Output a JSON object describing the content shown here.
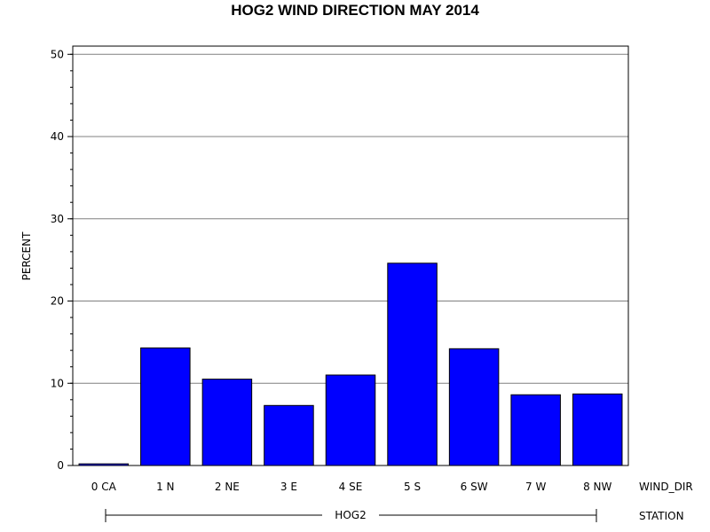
{
  "chart_data": {
    "type": "bar",
    "title": "HOG2 WIND DIRECTION MAY 2014",
    "ylabel": "PERCENT",
    "xlabel": "WIND_DIR",
    "group_axis_label": "STATION",
    "group_label": "HOG2",
    "categories": [
      "0 CA",
      "1 N",
      "2 NE",
      "3 E",
      "4 SE",
      "5 S",
      "6 SW",
      "7 W",
      "8 NW"
    ],
    "values": [
      0.2,
      14.3,
      10.5,
      7.3,
      11.0,
      24.6,
      14.2,
      8.6,
      8.7
    ],
    "ylim": [
      0,
      51
    ],
    "yticks": [
      0,
      10,
      20,
      30,
      40,
      50
    ],
    "grid": true,
    "bar_color": "#0000ff",
    "bar_outline_color": "#000000",
    "grid_color": "#808080"
  }
}
